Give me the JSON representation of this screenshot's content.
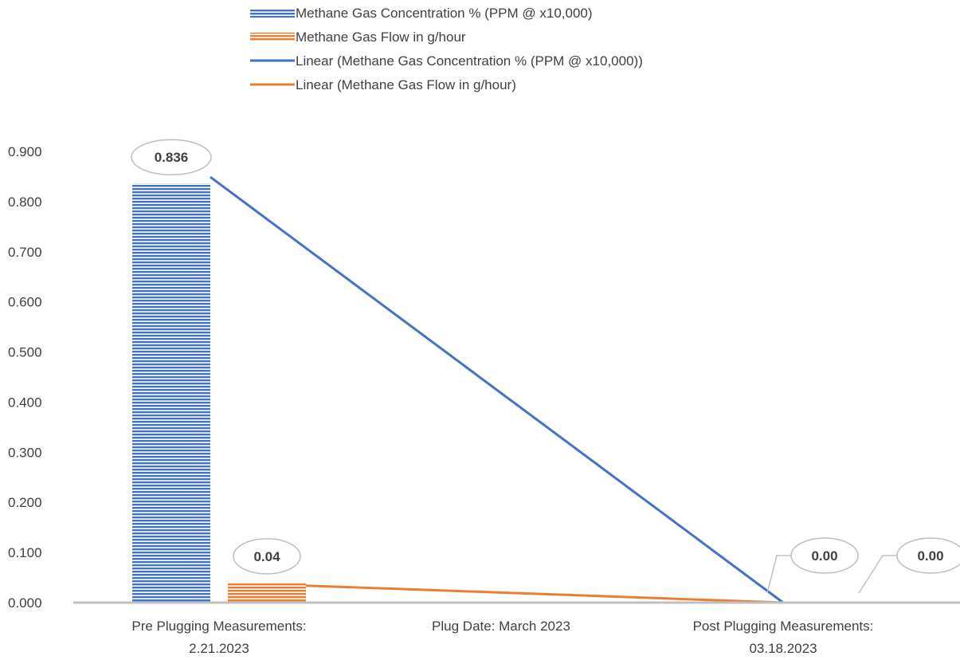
{
  "chart_data": {
    "type": "bar",
    "categories": [
      [
        "Pre Plugging Measurements:",
        "2.21.2023"
      ],
      [
        "Plug Date: March 2023"
      ],
      [
        "Post Plugging Measurements:",
        "03.18.2023"
      ]
    ],
    "series": [
      {
        "name": "Methane Gas Concentration % (PPM @ x10,000)",
        "values": [
          0.836,
          null,
          0.0
        ],
        "labels": [
          "0.836",
          null,
          "0.00"
        ],
        "color": "#4472C4"
      },
      {
        "name": "Methane Gas Flow in g/hour",
        "values": [
          0.04,
          null,
          0.0
        ],
        "labels": [
          "0.04",
          null,
          "0.00"
        ],
        "color": "#ED7D31"
      }
    ],
    "trendlines": [
      {
        "name": "Linear (Methane Gas Concentration % (PPM @ x10,000))",
        "series": 0,
        "color": "#4472C4"
      },
      {
        "name": "Linear (Methane Gas Flow in g/hour)",
        "series": 1,
        "color": "#ED7D31"
      }
    ],
    "ylim": [
      0,
      0.9
    ],
    "yticks": [
      "0.000",
      "0.100",
      "0.200",
      "0.300",
      "0.400",
      "0.500",
      "0.600",
      "0.700",
      "0.800",
      "0.900"
    ],
    "grid": false,
    "legend_position": "top"
  }
}
